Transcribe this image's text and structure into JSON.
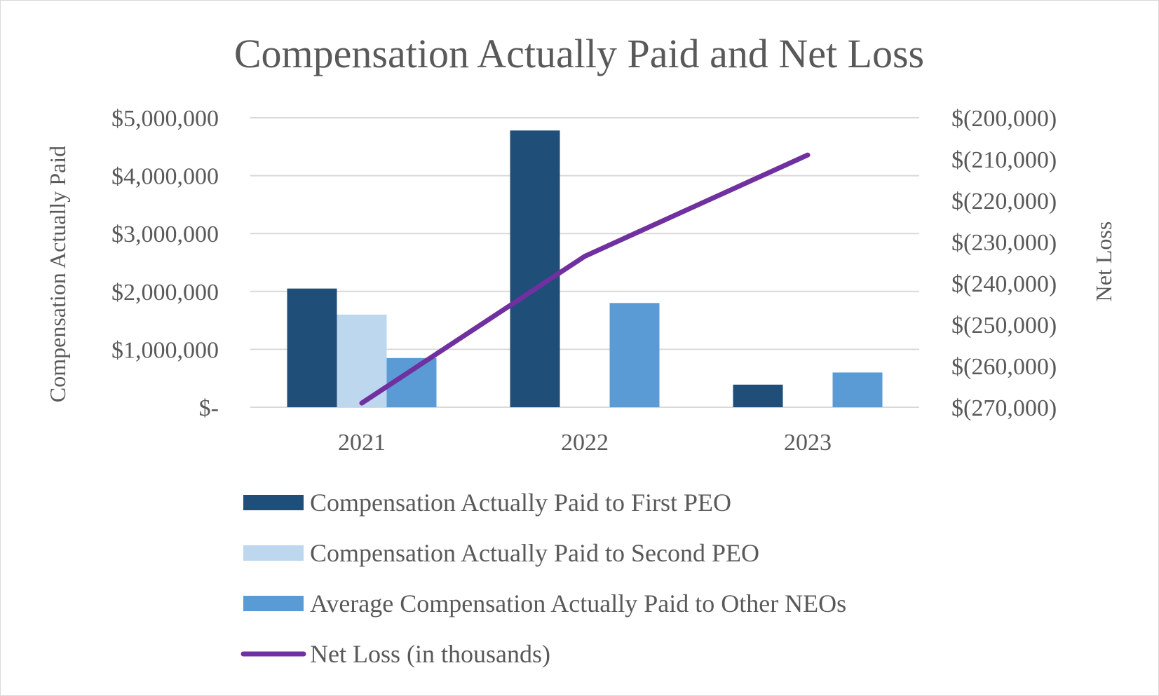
{
  "chart_data": {
    "type": "bar+line",
    "title": "Compensation Actually Paid and Net Loss",
    "categories": [
      "2021",
      "2022",
      "2023"
    ],
    "ylabel_left": "Compensation Actually Paid",
    "ylabel_right": "Net Loss",
    "ylim_left": [
      0,
      5000000
    ],
    "ylim_right": [
      -270000,
      -200000
    ],
    "yticks_left": [
      {
        "value": 0,
        "label": "$-"
      },
      {
        "value": 1000000,
        "label": "$1,000,000"
      },
      {
        "value": 2000000,
        "label": "$2,000,000"
      },
      {
        "value": 3000000,
        "label": "$3,000,000"
      },
      {
        "value": 4000000,
        "label": "$4,000,000"
      },
      {
        "value": 5000000,
        "label": "$5,000,000"
      }
    ],
    "yticks_right": [
      {
        "value": -270000,
        "label": "$(270,000)"
      },
      {
        "value": -260000,
        "label": "$(260,000)"
      },
      {
        "value": -250000,
        "label": "$(250,000)"
      },
      {
        "value": -240000,
        "label": "$(240,000)"
      },
      {
        "value": -230000,
        "label": "$(230,000)"
      },
      {
        "value": -220000,
        "label": "$(220,000)"
      },
      {
        "value": -210000,
        "label": "$(210,000)"
      },
      {
        "value": -200000,
        "label": "$(200,000)"
      }
    ],
    "gridlines": true,
    "legend_position": "bottom",
    "series": [
      {
        "name": "Compensation Actually Paid to First PEO",
        "kind": "bar",
        "axis": "left",
        "color": "#1f4e79",
        "values": [
          2050000,
          4780000,
          390000
        ]
      },
      {
        "name": "Compensation Actually Paid to Second PEO",
        "kind": "bar",
        "axis": "left",
        "color": "#bdd7ee",
        "values": [
          1600000,
          null,
          null
        ]
      },
      {
        "name": "Average Compensation Actually Paid to Other NEOs",
        "kind": "bar",
        "axis": "left",
        "color": "#5b9bd5",
        "values": [
          850000,
          1800000,
          600000
        ]
      },
      {
        "name": "Net Loss (in thousands)",
        "kind": "line",
        "axis": "right",
        "color": "#7030a0",
        "values": [
          -269000,
          -233500,
          -209000
        ]
      }
    ]
  }
}
